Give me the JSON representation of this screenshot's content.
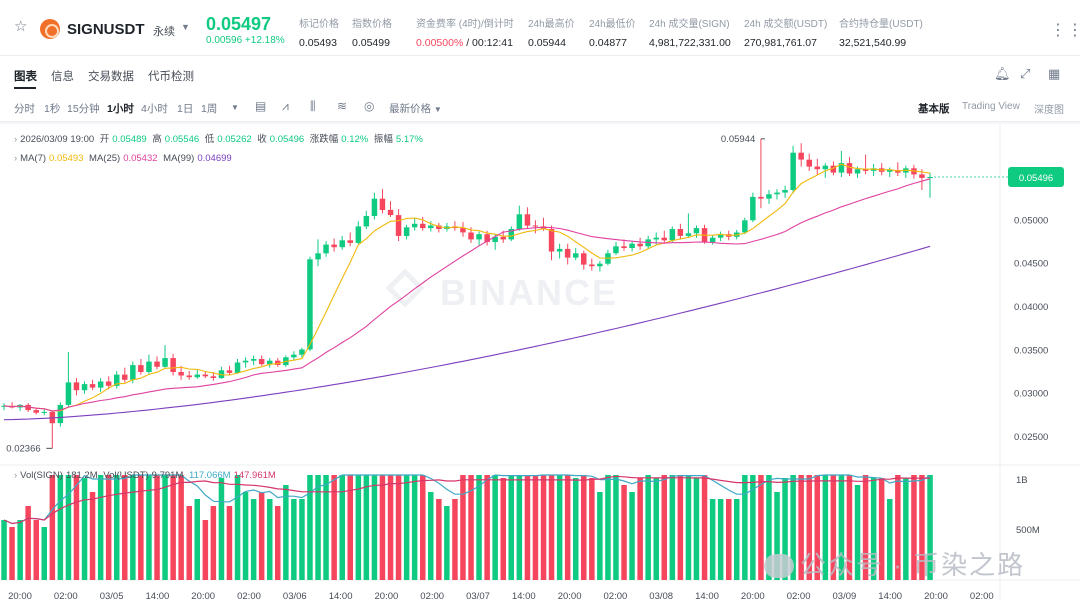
{
  "header": {
    "symbol": "SIGNUSDT",
    "contract_type": "永续",
    "last_price": "0.05497",
    "change": "0.00596 +12.18%",
    "stats": [
      {
        "label": "标记价格",
        "value": "0.05493"
      },
      {
        "label": "指数价格",
        "value": "0.05499"
      },
      {
        "label": "资金费率 (4时)/倒计时",
        "value_red": "0.00500%",
        "value": " / 00:12:41"
      },
      {
        "label": "24h最高价",
        "value": "0.05944"
      },
      {
        "label": "24h最低价",
        "value": "0.04877"
      },
      {
        "label": "24h 成交量(SIGN)",
        "value": "4,981,722,331.00"
      },
      {
        "label": "24h 成交额(USDT)",
        "value": "270,981,761.07"
      },
      {
        "label": "合约持仓量(USDT)",
        "value": "32,521,540.99"
      }
    ]
  },
  "tabs": [
    "图表",
    "信息",
    "交易数据",
    "代币检测"
  ],
  "intervals": [
    "分时",
    "1秒",
    "15分钟",
    "1小时",
    "4小时",
    "1日",
    "1周"
  ],
  "active_interval": "1小时",
  "price_type": "最新价格",
  "views": [
    "基本版",
    "Trading View",
    "深度图"
  ],
  "legend": {
    "date": "2026/03/09 19:00",
    "open_label": "开",
    "open": "0.05489",
    "high_label": "高",
    "high": "0.05546",
    "low_label": "低",
    "low": "0.05262",
    "close_label": "收",
    "close": "0.05496",
    "chg_label": "涨跌幅",
    "chg": "0.12%",
    "amp_label": "振幅",
    "amp": "5.17%",
    "ma7_label": "MA(7)",
    "ma7": "0.05493",
    "ma25_label": "MA(25)",
    "ma25": "0.05432",
    "ma99_label": "MA(99)",
    "ma99": "0.04699",
    "vol_label": "Vol(SIGN)",
    "vol": "181.2M",
    "volu_label": "Vol(USDT)",
    "volu": "9.791M",
    "volma1": "117.066M",
    "volma2": "147.961M"
  },
  "price_axis": [
    "0.05000",
    "0.04500",
    "0.04000",
    "0.03500",
    "0.03000",
    "0.02500"
  ],
  "current_price_tag": "0.05496",
  "high_marker": "0.05944",
  "low_marker": "0.02366",
  "volume_axis": [
    "1B",
    "500M"
  ],
  "time_axis": [
    "20:00",
    "02:00",
    "03/05",
    "14:00",
    "20:00",
    "02:00",
    "03/06",
    "14:00",
    "20:00",
    "02:00",
    "03/07",
    "14:00",
    "20:00",
    "02:00",
    "03/08",
    "14:00",
    "20:00",
    "02:00",
    "03/09",
    "14:00",
    "20:00",
    "02:00"
  ],
  "watermark": "BINANCE",
  "overlay_watermark": "公众号 · 币染之路",
  "colors": {
    "up": "#0ecb81",
    "down": "#f6465d",
    "ma7": "#f0b90b",
    "ma25": "#e040a0",
    "ma99": "#7b3fbf"
  },
  "chart_data": {
    "type": "candlestick",
    "timeframe": "1h",
    "ylim": [
      0.022,
      0.061
    ],
    "candles": [
      [
        0.0285,
        0.0289,
        0.0281,
        0.0286
      ],
      [
        0.0286,
        0.029,
        0.0283,
        0.0284
      ],
      [
        0.0284,
        0.0288,
        0.028,
        0.0287
      ],
      [
        0.0287,
        0.0289,
        0.0279,
        0.0281
      ],
      [
        0.0281,
        0.0284,
        0.0276,
        0.0278
      ],
      [
        0.0278,
        0.0282,
        0.0275,
        0.0279
      ],
      [
        0.0279,
        0.028,
        0.0237,
        0.0266
      ],
      [
        0.0266,
        0.029,
        0.0262,
        0.0287
      ],
      [
        0.0287,
        0.0348,
        0.0285,
        0.0313
      ],
      [
        0.0313,
        0.0318,
        0.0298,
        0.0304
      ],
      [
        0.0304,
        0.0314,
        0.03,
        0.0311
      ],
      [
        0.0311,
        0.0316,
        0.0304,
        0.0307
      ],
      [
        0.0307,
        0.0318,
        0.0302,
        0.0314
      ],
      [
        0.0314,
        0.032,
        0.0305,
        0.0309
      ],
      [
        0.0309,
        0.0326,
        0.0306,
        0.0322
      ],
      [
        0.0322,
        0.033,
        0.0313,
        0.0316
      ],
      [
        0.0316,
        0.0337,
        0.0312,
        0.0333
      ],
      [
        0.0333,
        0.034,
        0.0322,
        0.0325
      ],
      [
        0.0325,
        0.0345,
        0.0323,
        0.0337
      ],
      [
        0.0337,
        0.0343,
        0.0328,
        0.0331
      ],
      [
        0.0331,
        0.0356,
        0.033,
        0.0341
      ],
      [
        0.0341,
        0.0346,
        0.0321,
        0.0325
      ],
      [
        0.0325,
        0.0332,
        0.0316,
        0.0321
      ],
      [
        0.0321,
        0.0326,
        0.0316,
        0.0319
      ],
      [
        0.0319,
        0.0328,
        0.0317,
        0.0322
      ],
      [
        0.0322,
        0.0326,
        0.0318,
        0.032
      ],
      [
        0.032,
        0.0325,
        0.0315,
        0.0318
      ],
      [
        0.0318,
        0.0331,
        0.0317,
        0.0327
      ],
      [
        0.0327,
        0.0332,
        0.0322,
        0.0324
      ],
      [
        0.0324,
        0.034,
        0.0323,
        0.0336
      ],
      [
        0.0336,
        0.0342,
        0.033,
        0.0338
      ],
      [
        0.0338,
        0.0344,
        0.0333,
        0.034
      ],
      [
        0.034,
        0.0344,
        0.0332,
        0.0334
      ],
      [
        0.0334,
        0.0341,
        0.033,
        0.0338
      ],
      [
        0.0338,
        0.0341,
        0.0331,
        0.0333
      ],
      [
        0.0333,
        0.0344,
        0.0331,
        0.0342
      ],
      [
        0.0342,
        0.0349,
        0.0338,
        0.0345
      ],
      [
        0.0345,
        0.0353,
        0.0342,
        0.0351
      ],
      [
        0.0351,
        0.0458,
        0.0349,
        0.0455
      ],
      [
        0.0455,
        0.0478,
        0.0447,
        0.0462
      ],
      [
        0.0462,
        0.0476,
        0.0458,
        0.0472
      ],
      [
        0.0472,
        0.0479,
        0.0464,
        0.0469
      ],
      [
        0.0469,
        0.0482,
        0.0466,
        0.0477
      ],
      [
        0.0477,
        0.0486,
        0.047,
        0.0474
      ],
      [
        0.0474,
        0.0499,
        0.0472,
        0.0493
      ],
      [
        0.0493,
        0.0511,
        0.049,
        0.0505
      ],
      [
        0.0505,
        0.0532,
        0.0501,
        0.0525
      ],
      [
        0.0525,
        0.0536,
        0.0508,
        0.0512
      ],
      [
        0.0512,
        0.0522,
        0.0504,
        0.0506
      ],
      [
        0.0506,
        0.0513,
        0.0476,
        0.0482
      ],
      [
        0.0482,
        0.0495,
        0.0478,
        0.0492
      ],
      [
        0.0492,
        0.0503,
        0.0488,
        0.0496
      ],
      [
        0.0496,
        0.0504,
        0.0488,
        0.0491
      ],
      [
        0.0491,
        0.0499,
        0.0487,
        0.0494
      ],
      [
        0.0494,
        0.0497,
        0.0486,
        0.049
      ],
      [
        0.049,
        0.0497,
        0.0487,
        0.0493
      ],
      [
        0.0493,
        0.0499,
        0.0488,
        0.0491
      ],
      [
        0.0491,
        0.0498,
        0.0481,
        0.0486
      ],
      [
        0.0486,
        0.0492,
        0.0474,
        0.0478
      ],
      [
        0.0478,
        0.0487,
        0.0471,
        0.0484
      ],
      [
        0.0484,
        0.0488,
        0.0471,
        0.0475
      ],
      [
        0.0475,
        0.0484,
        0.0466,
        0.0481
      ],
      [
        0.0481,
        0.0488,
        0.0474,
        0.0478
      ],
      [
        0.0478,
        0.0493,
        0.0476,
        0.049
      ],
      [
        0.049,
        0.0517,
        0.0488,
        0.0507
      ],
      [
        0.0507,
        0.0515,
        0.049,
        0.0494
      ],
      [
        0.0494,
        0.05,
        0.0485,
        0.0493
      ],
      [
        0.0493,
        0.0503,
        0.0488,
        0.049
      ],
      [
        0.049,
        0.0494,
        0.0454,
        0.0464
      ],
      [
        0.0464,
        0.0473,
        0.0456,
        0.0467
      ],
      [
        0.0467,
        0.0473,
        0.0449,
        0.0457
      ],
      [
        0.0457,
        0.0468,
        0.0454,
        0.0462
      ],
      [
        0.0462,
        0.0465,
        0.0443,
        0.0449
      ],
      [
        0.0449,
        0.0456,
        0.0442,
        0.0447
      ],
      [
        0.0447,
        0.0453,
        0.0441,
        0.045
      ],
      [
        0.045,
        0.0466,
        0.0448,
        0.0462
      ],
      [
        0.0462,
        0.0475,
        0.046,
        0.047
      ],
      [
        0.047,
        0.0478,
        0.0465,
        0.0468
      ],
      [
        0.0468,
        0.0476,
        0.0464,
        0.0473
      ],
      [
        0.0473,
        0.048,
        0.0466,
        0.047
      ],
      [
        0.047,
        0.0482,
        0.0467,
        0.0478
      ],
      [
        0.0478,
        0.0486,
        0.0472,
        0.048
      ],
      [
        0.048,
        0.0488,
        0.0473,
        0.0477
      ],
      [
        0.0477,
        0.0493,
        0.0475,
        0.049
      ],
      [
        0.049,
        0.0496,
        0.0478,
        0.0482
      ],
      [
        0.0482,
        0.0508,
        0.048,
        0.0485
      ],
      [
        0.0485,
        0.0494,
        0.048,
        0.0491
      ],
      [
        0.0491,
        0.0495,
        0.0473,
        0.0475
      ],
      [
        0.0475,
        0.0483,
        0.0472,
        0.048
      ],
      [
        0.048,
        0.0487,
        0.0476,
        0.0484
      ],
      [
        0.0484,
        0.0488,
        0.0477,
        0.0481
      ],
      [
        0.0481,
        0.0489,
        0.0478,
        0.0486
      ],
      [
        0.0486,
        0.0503,
        0.0484,
        0.05
      ],
      [
        0.05,
        0.0532,
        0.0498,
        0.0527
      ],
      [
        0.0527,
        0.0594,
        0.0514,
        0.0525
      ],
      [
        0.0525,
        0.0535,
        0.0519,
        0.053
      ],
      [
        0.053,
        0.0536,
        0.0524,
        0.0532
      ],
      [
        0.0532,
        0.054,
        0.0526,
        0.0535
      ],
      [
        0.0535,
        0.0586,
        0.0531,
        0.0578
      ],
      [
        0.0578,
        0.0589,
        0.0562,
        0.057
      ],
      [
        0.057,
        0.0577,
        0.0557,
        0.0562
      ],
      [
        0.0562,
        0.0571,
        0.0553,
        0.0559
      ],
      [
        0.0559,
        0.0566,
        0.0549,
        0.0563
      ],
      [
        0.0563,
        0.0568,
        0.0552,
        0.0555
      ],
      [
        0.0555,
        0.058,
        0.055,
        0.0566
      ],
      [
        0.0566,
        0.0573,
        0.0551,
        0.0554
      ],
      [
        0.0554,
        0.0562,
        0.0549,
        0.0559
      ],
      [
        0.0559,
        0.0576,
        0.0553,
        0.0557
      ],
      [
        0.0557,
        0.0565,
        0.0551,
        0.056
      ],
      [
        0.056,
        0.0566,
        0.0552,
        0.0556
      ],
      [
        0.0556,
        0.0561,
        0.055,
        0.0558
      ],
      [
        0.0558,
        0.0567,
        0.0551,
        0.0555
      ],
      [
        0.0555,
        0.0563,
        0.0549,
        0.056
      ],
      [
        0.056,
        0.0564,
        0.0548,
        0.0553
      ],
      [
        0.0553,
        0.0559,
        0.0535,
        0.0549
      ],
      [
        0.0549,
        0.0555,
        0.0526,
        0.055
      ]
    ],
    "ma_series": [
      "MA(7)",
      "MA(25)",
      "MA(99)"
    ],
    "volume_unit": "M",
    "volume_ylim": [
      0,
      1100
    ]
  }
}
